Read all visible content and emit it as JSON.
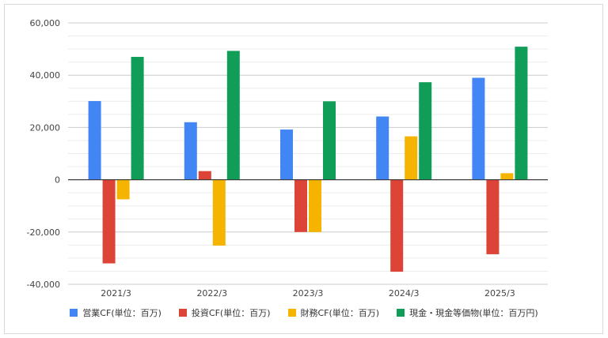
{
  "chart_data": {
    "type": "bar",
    "categories": [
      "2021/3",
      "2022/3",
      "2023/3",
      "2024/3",
      "2025/3"
    ],
    "ylim": [
      -40000,
      60000
    ],
    "yticks": [
      60000,
      40000,
      20000,
      0,
      -20000,
      -40000
    ],
    "ytick_labels": [
      "60,000",
      "40,000",
      "20,000",
      "0",
      "-20,000",
      "-40,000"
    ],
    "grid": true,
    "legend_position": "bottom",
    "series": [
      {
        "name": "営業CF(単位：百万)",
        "color": "#4285f4",
        "values": [
          30100,
          22000,
          19200,
          24200,
          39000
        ]
      },
      {
        "name": "投資CF(単位：百万)",
        "color": "#db4437",
        "values": [
          -32000,
          3300,
          -20000,
          -35200,
          -28500
        ]
      },
      {
        "name": "財務CF(単位：百万)",
        "color": "#f4b400",
        "values": [
          -7500,
          -25200,
          -20000,
          16600,
          2500
        ]
      },
      {
        "name": "現金・現金等価物(単位：百万円)",
        "color": "#0f9d58",
        "values": [
          47000,
          49300,
          30000,
          37300,
          50900
        ]
      }
    ]
  }
}
